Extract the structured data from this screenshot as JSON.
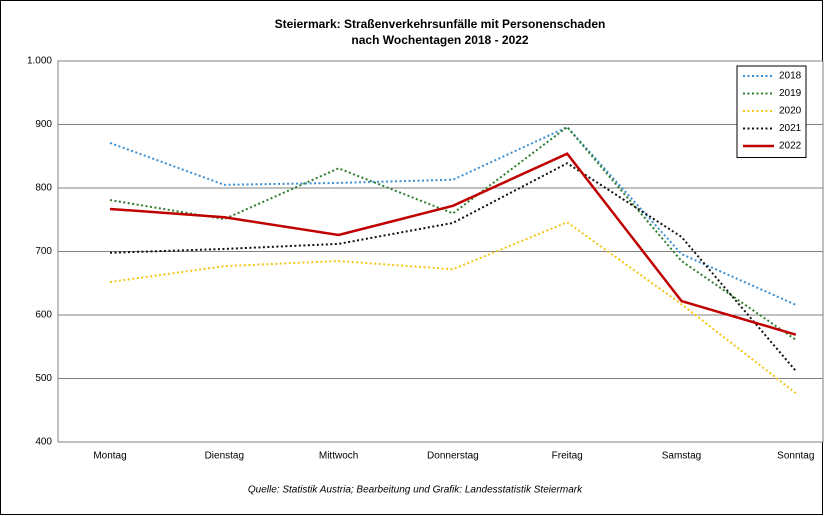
{
  "chart_data": {
    "type": "line",
    "title": [
      "Steiermark: Straßenverkehrsunfälle mit Personenschaden",
      "nach Wochentagen 2018 - 2022"
    ],
    "source": "Quelle: Statistik Austria; Bearbeitung und Grafik: Landesstatistik Steiermark",
    "categories": [
      "Montag",
      "Dienstag",
      "Mittwoch",
      "Donnerstag",
      "Freitag",
      "Samstag",
      "Sonntag"
    ],
    "ylim": [
      400,
      1000
    ],
    "yticks": [
      400,
      500,
      600,
      700,
      800,
      900,
      {
        "value": 1000,
        "label": "1.000"
      }
    ],
    "grid": true,
    "legend": "top-right",
    "series": [
      {
        "name": "2018",
        "color": "#3b8fd4",
        "dash": "dotted",
        "values": [
          871,
          805,
          808,
          813,
          896,
          696,
          616
        ]
      },
      {
        "name": "2019",
        "color": "#2e7d2e",
        "dash": "dotted",
        "values": [
          781,
          751,
          831,
          760,
          896,
          685,
          561
        ]
      },
      {
        "name": "2020",
        "color": "#f5c518",
        "dash": "dotted",
        "values": [
          652,
          677,
          685,
          672,
          746,
          617,
          477
        ]
      },
      {
        "name": "2021",
        "color": "#111111",
        "dash": "dotted",
        "values": [
          698,
          704,
          712,
          745,
          839,
          723,
          512
        ]
      },
      {
        "name": "2022",
        "color": "#c00000",
        "dash": "solid",
        "values": [
          767,
          754,
          726,
          772,
          854,
          622,
          569
        ]
      }
    ]
  }
}
